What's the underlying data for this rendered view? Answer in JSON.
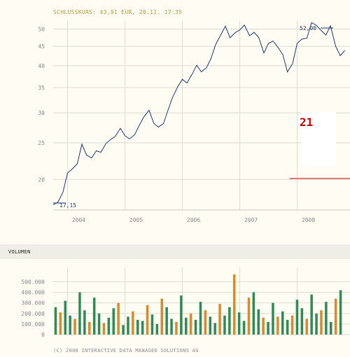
{
  "header": {
    "close_label": "SCHLUSSKURS: 43,91 EUR, 20.11. 17:35"
  },
  "volume_label": "VOLUMEN",
  "copyright": "(C) 2008 INTERACTIVE DATA MANAGED SOLUTIONS AG",
  "colors": {
    "price_line": "#1d3a6e",
    "grid": "#dcdcd0",
    "axis_text": "#888888",
    "vol_up": "#2e8b57",
    "vol_down": "#d98a2a",
    "overlay_red": "#cc0000"
  },
  "overlay": {
    "number": "21"
  },
  "chart_data": [
    {
      "type": "line",
      "title": "",
      "x_ticks": [
        "2004",
        "2005",
        "2006",
        "2007",
        "2008"
      ],
      "y_ticks": [
        "20",
        "25",
        "30",
        "35",
        "40",
        "45",
        "50"
      ],
      "y_scale": "log",
      "ylim": [
        16.6,
        52.5
      ],
      "grid": true,
      "annotations": {
        "min_label": "17,15",
        "max_label": "52,00",
        "min_value": 17.15,
        "max_value": 52.0
      },
      "series": [
        {
          "x": [
            2003.75,
            2003.83,
            2003.92,
            2004.0,
            2004.08,
            2004.17,
            2004.25,
            2004.33,
            2004.42,
            2004.5,
            2004.58,
            2004.67,
            2004.75,
            2004.83,
            2004.92,
            2005.0,
            2005.08,
            2005.17,
            2005.25,
            2005.33,
            2005.42,
            2005.5,
            2005.58,
            2005.67,
            2005.75,
            2005.83,
            2005.92,
            2006.0,
            2006.08,
            2006.17,
            2006.25,
            2006.33,
            2006.42,
            2006.5,
            2006.58,
            2006.67,
            2006.75,
            2006.83,
            2006.92,
            2007.0,
            2007.08,
            2007.17,
            2007.25,
            2007.33,
            2007.42,
            2007.5,
            2007.58,
            2007.67,
            2007.75,
            2007.83,
            2007.92,
            2008.0,
            2008.08,
            2008.17,
            2008.25,
            2008.33,
            2008.42,
            2008.5,
            2008.58,
            2008.67,
            2008.75,
            2008.83
          ],
          "y": [
            17.15,
            17.4,
            18.5,
            20.8,
            21.3,
            22.0,
            24.8,
            23.2,
            22.8,
            23.8,
            23.6,
            24.9,
            25.5,
            26.0,
            27.3,
            26.1,
            25.6,
            26.3,
            27.8,
            29.3,
            30.5,
            28.2,
            27.5,
            28.1,
            30.5,
            33.0,
            35.2,
            36.8,
            36.0,
            38.0,
            40.1,
            38.5,
            39.5,
            41.8,
            45.5,
            48.3,
            50.9,
            47.4,
            48.9,
            49.7,
            51.2,
            48.0,
            49.0,
            47.5,
            43.2,
            45.8,
            46.5,
            44.6,
            42.8,
            38.5,
            40.5,
            45.8,
            47.0,
            47.3,
            52.0,
            51.2,
            49.5,
            48.2,
            51.0,
            45.0,
            42.5,
            43.91
          ]
        }
      ]
    },
    {
      "type": "bar",
      "title": "",
      "y_ticks": [
        "0",
        "100.000",
        "200.000",
        "300.000",
        "400.000",
        "500.000"
      ],
      "ylim": [
        0,
        570000
      ],
      "grid": true,
      "series": [
        {
          "name": "",
          "values": [
            260000,
            210000,
            320000,
            180000,
            150000,
            400000,
            230000,
            120000,
            350000,
            200000,
            110000,
            160000,
            250000,
            300000,
            90000,
            170000,
            220000,
            140000,
            130000,
            280000,
            190000,
            100000,
            340000,
            260000,
            150000,
            120000,
            370000,
            160000,
            200000,
            140000,
            310000,
            230000,
            170000,
            110000,
            290000,
            180000,
            260000,
            570000,
            210000,
            130000,
            350000,
            400000,
            240000,
            160000,
            120000,
            300000,
            170000,
            220000,
            140000,
            180000,
            330000,
            250000,
            150000,
            380000,
            200000,
            230000,
            310000,
            120000,
            340000,
            420000
          ]
        }
      ]
    }
  ]
}
